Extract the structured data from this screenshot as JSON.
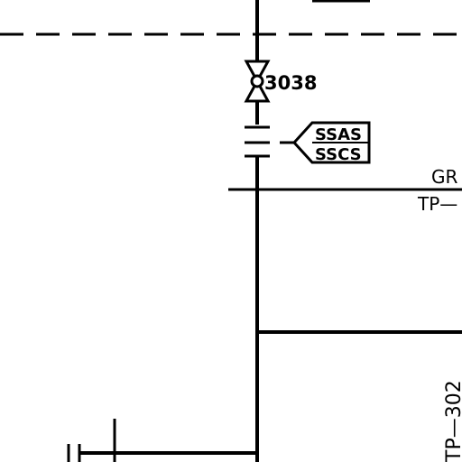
{
  "drawing": {
    "valve_tag": "3038",
    "flag_top": "SSAS",
    "flag_bottom": "SSCS",
    "right_label_top": "GR",
    "right_label_bottom": "TP—",
    "vertical_label": "TP—302"
  },
  "colors": {
    "ink": "#000000",
    "paper": "#ffffff"
  }
}
